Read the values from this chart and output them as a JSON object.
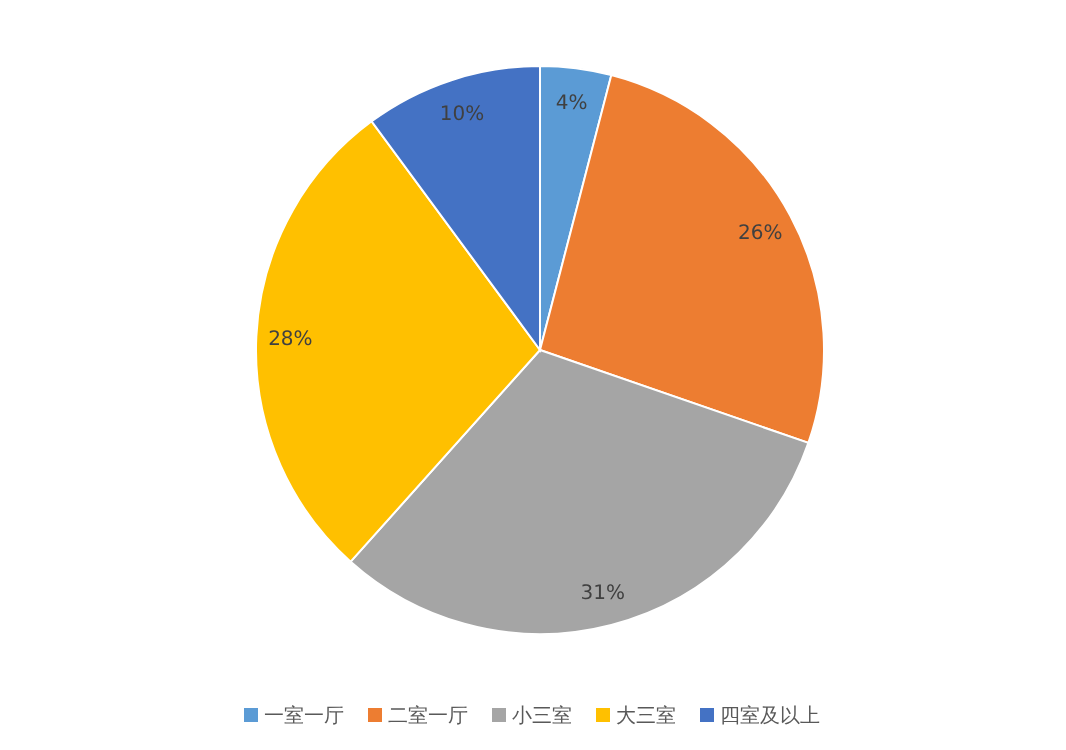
{
  "chart_data": {
    "type": "pie",
    "categories": [
      "一室一厅",
      "二室一厅",
      "小三室",
      "大三室",
      "四室及以上"
    ],
    "values": [
      4,
      26,
      31,
      28,
      10
    ],
    "colors": [
      "#5b9bd5",
      "#ed7d31",
      "#a5a5a5",
      "#ffc000",
      "#4472c4"
    ],
    "value_labels": [
      "4%",
      "26%",
      "31%",
      "28%",
      "10%"
    ],
    "legend": "bottom"
  }
}
